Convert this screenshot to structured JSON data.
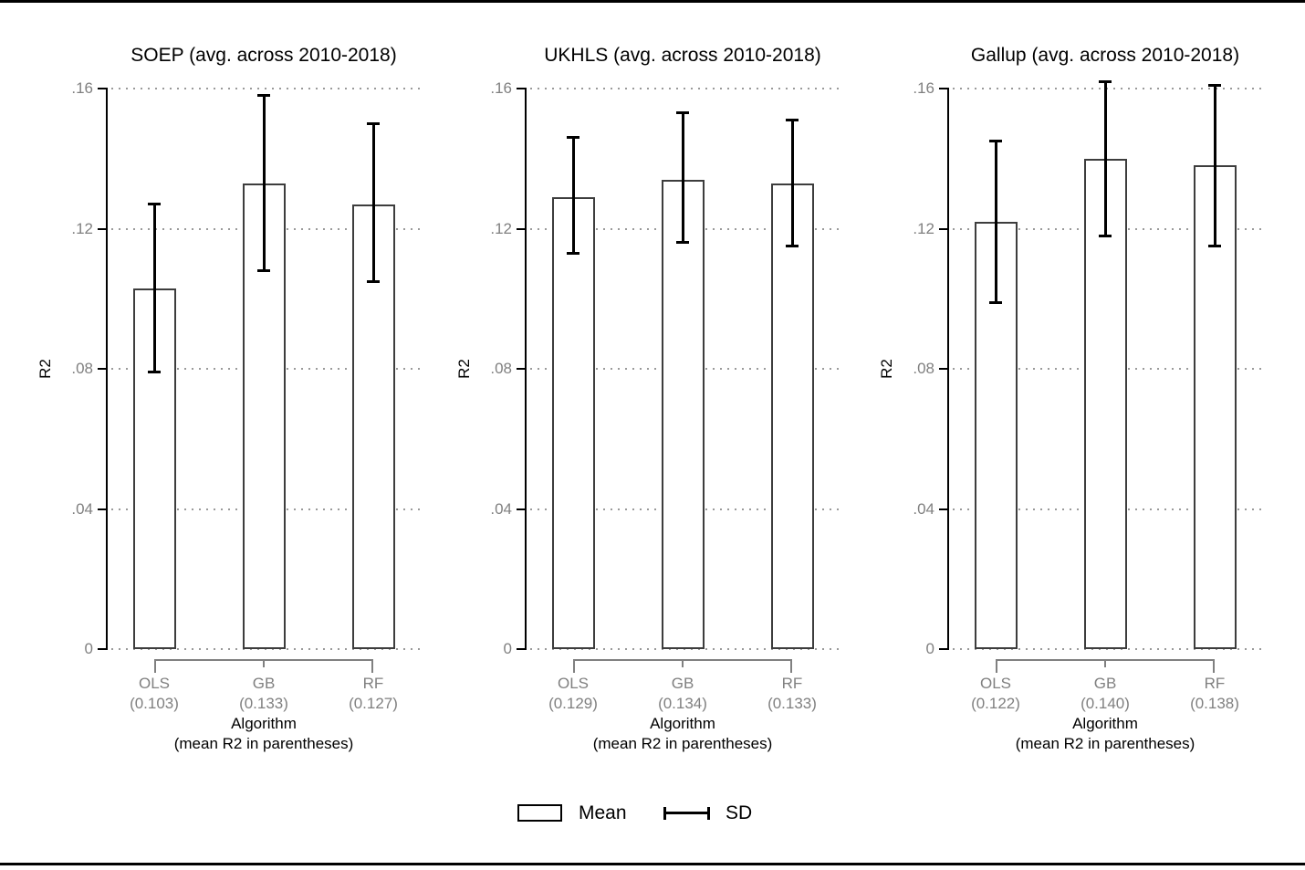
{
  "page": {
    "background": "#ffffff",
    "top_rule_color": "#000000",
    "bottom_rule_color": "#000000"
  },
  "colors": {
    "title_text": "#000000",
    "muted_text": "#808080",
    "grid_dots": "#9a9a9a",
    "axis_line": "#000000",
    "bar_fill": "#ffffff",
    "bar_border": "#3d3d3d",
    "error_bar": "#000000",
    "bracket": "#808080"
  },
  "axis": {
    "ylabel": "R2",
    "ytick_labels": [
      "0",
      ".04",
      ".08",
      ".12",
      ".16"
    ],
    "yticks": [
      0,
      0.04,
      0.08,
      0.12,
      0.16
    ],
    "ylim": [
      0,
      0.16
    ],
    "xlabel_line1": "Algorithm",
    "xlabel_line2": "(mean R2 in parentheses)",
    "grid": "dotted horizontal gridlines at each y tick"
  },
  "legend": {
    "position": "bottom-center",
    "mean_label": "Mean",
    "sd_label": "SD"
  },
  "chart_data": [
    {
      "type": "bar",
      "slug": "soep",
      "title": "SOEP (avg. across 2010-2018)",
      "categories": [
        "OLS",
        "GB",
        "RF"
      ],
      "category_sublabels": [
        "(0.103)",
        "(0.133)",
        "(0.127)"
      ],
      "values": [
        0.103,
        0.133,
        0.127
      ],
      "sd_low": [
        0.079,
        0.108,
        0.105
      ],
      "sd_high": [
        0.127,
        0.158,
        0.15
      ],
      "ylabel": "R2",
      "xlabel": "Algorithm (mean R2 in parentheses)",
      "ylim": [
        0,
        0.16
      ]
    },
    {
      "type": "bar",
      "slug": "ukhls",
      "title": "UKHLS (avg. across 2010-2018)",
      "categories": [
        "OLS",
        "GB",
        "RF"
      ],
      "category_sublabels": [
        "(0.129)",
        "(0.134)",
        "(0.133)"
      ],
      "values": [
        0.129,
        0.134,
        0.133
      ],
      "sd_low": [
        0.113,
        0.116,
        0.115
      ],
      "sd_high": [
        0.146,
        0.153,
        0.151
      ],
      "ylabel": "R2",
      "xlabel": "Algorithm (mean R2 in parentheses)",
      "ylim": [
        0,
        0.16
      ]
    },
    {
      "type": "bar",
      "slug": "gallup",
      "title": "Gallup (avg. across 2010-2018)",
      "categories": [
        "OLS",
        "GB",
        "RF"
      ],
      "category_sublabels": [
        "(0.122)",
        "(0.140)",
        "(0.138)"
      ],
      "values": [
        0.122,
        0.14,
        0.138
      ],
      "sd_low": [
        0.099,
        0.118,
        0.115
      ],
      "sd_high": [
        0.145,
        0.162,
        0.161
      ],
      "ylabel": "R2",
      "xlabel": "Algorithm (mean R2 in parentheses)",
      "ylim": [
        0,
        0.16
      ]
    }
  ]
}
